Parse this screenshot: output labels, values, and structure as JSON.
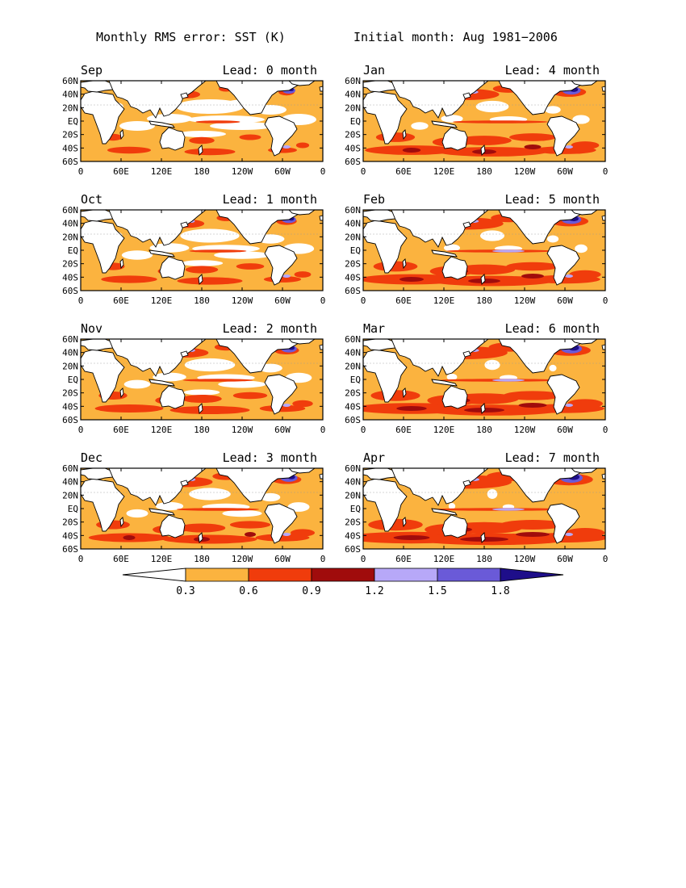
{
  "figure": {
    "title_left": "Monthly RMS error: SST (K)",
    "title_right": "Initial month: Aug 1981−2006"
  },
  "axes": {
    "lat_ticks": [
      "60N",
      "40N",
      "20N",
      "EQ",
      "20S",
      "40S",
      "60S"
    ],
    "lon_ticks": [
      "0",
      "60E",
      "120E",
      "180",
      "120W",
      "60W",
      "0"
    ]
  },
  "panels": [
    {
      "month": "Sep",
      "lead": "Lead: 0 month"
    },
    {
      "month": "Jan",
      "lead": "Lead: 4 month"
    },
    {
      "month": "Oct",
      "lead": "Lead: 1 month"
    },
    {
      "month": "Feb",
      "lead": "Lead: 5 month"
    },
    {
      "month": "Nov",
      "lead": "Lead: 2 month"
    },
    {
      "month": "Mar",
      "lead": "Lead: 6 month"
    },
    {
      "month": "Dec",
      "lead": "Lead: 3 month"
    },
    {
      "month": "Apr",
      "lead": "Lead: 7 month"
    }
  ],
  "colorbar": {
    "labels": [
      "0.3",
      "0.6",
      "0.9",
      "1.2",
      "1.5",
      "1.8"
    ],
    "colors": [
      "#ffffff",
      "#fbb33f",
      "#f03c0c",
      "#a00c0c",
      "#b7a8f8",
      "#6a5ad8",
      "#1e0e8a"
    ]
  },
  "colors": {
    "land": "#ffffff",
    "ocean_base": "#fbb33f",
    "high_error": "#f03c0c",
    "very_high_error": "#a00c0c",
    "low_purple": "#b7a8f8",
    "mid_purple": "#6a5ad8",
    "dark_purple": "#1e0e8a"
  }
}
